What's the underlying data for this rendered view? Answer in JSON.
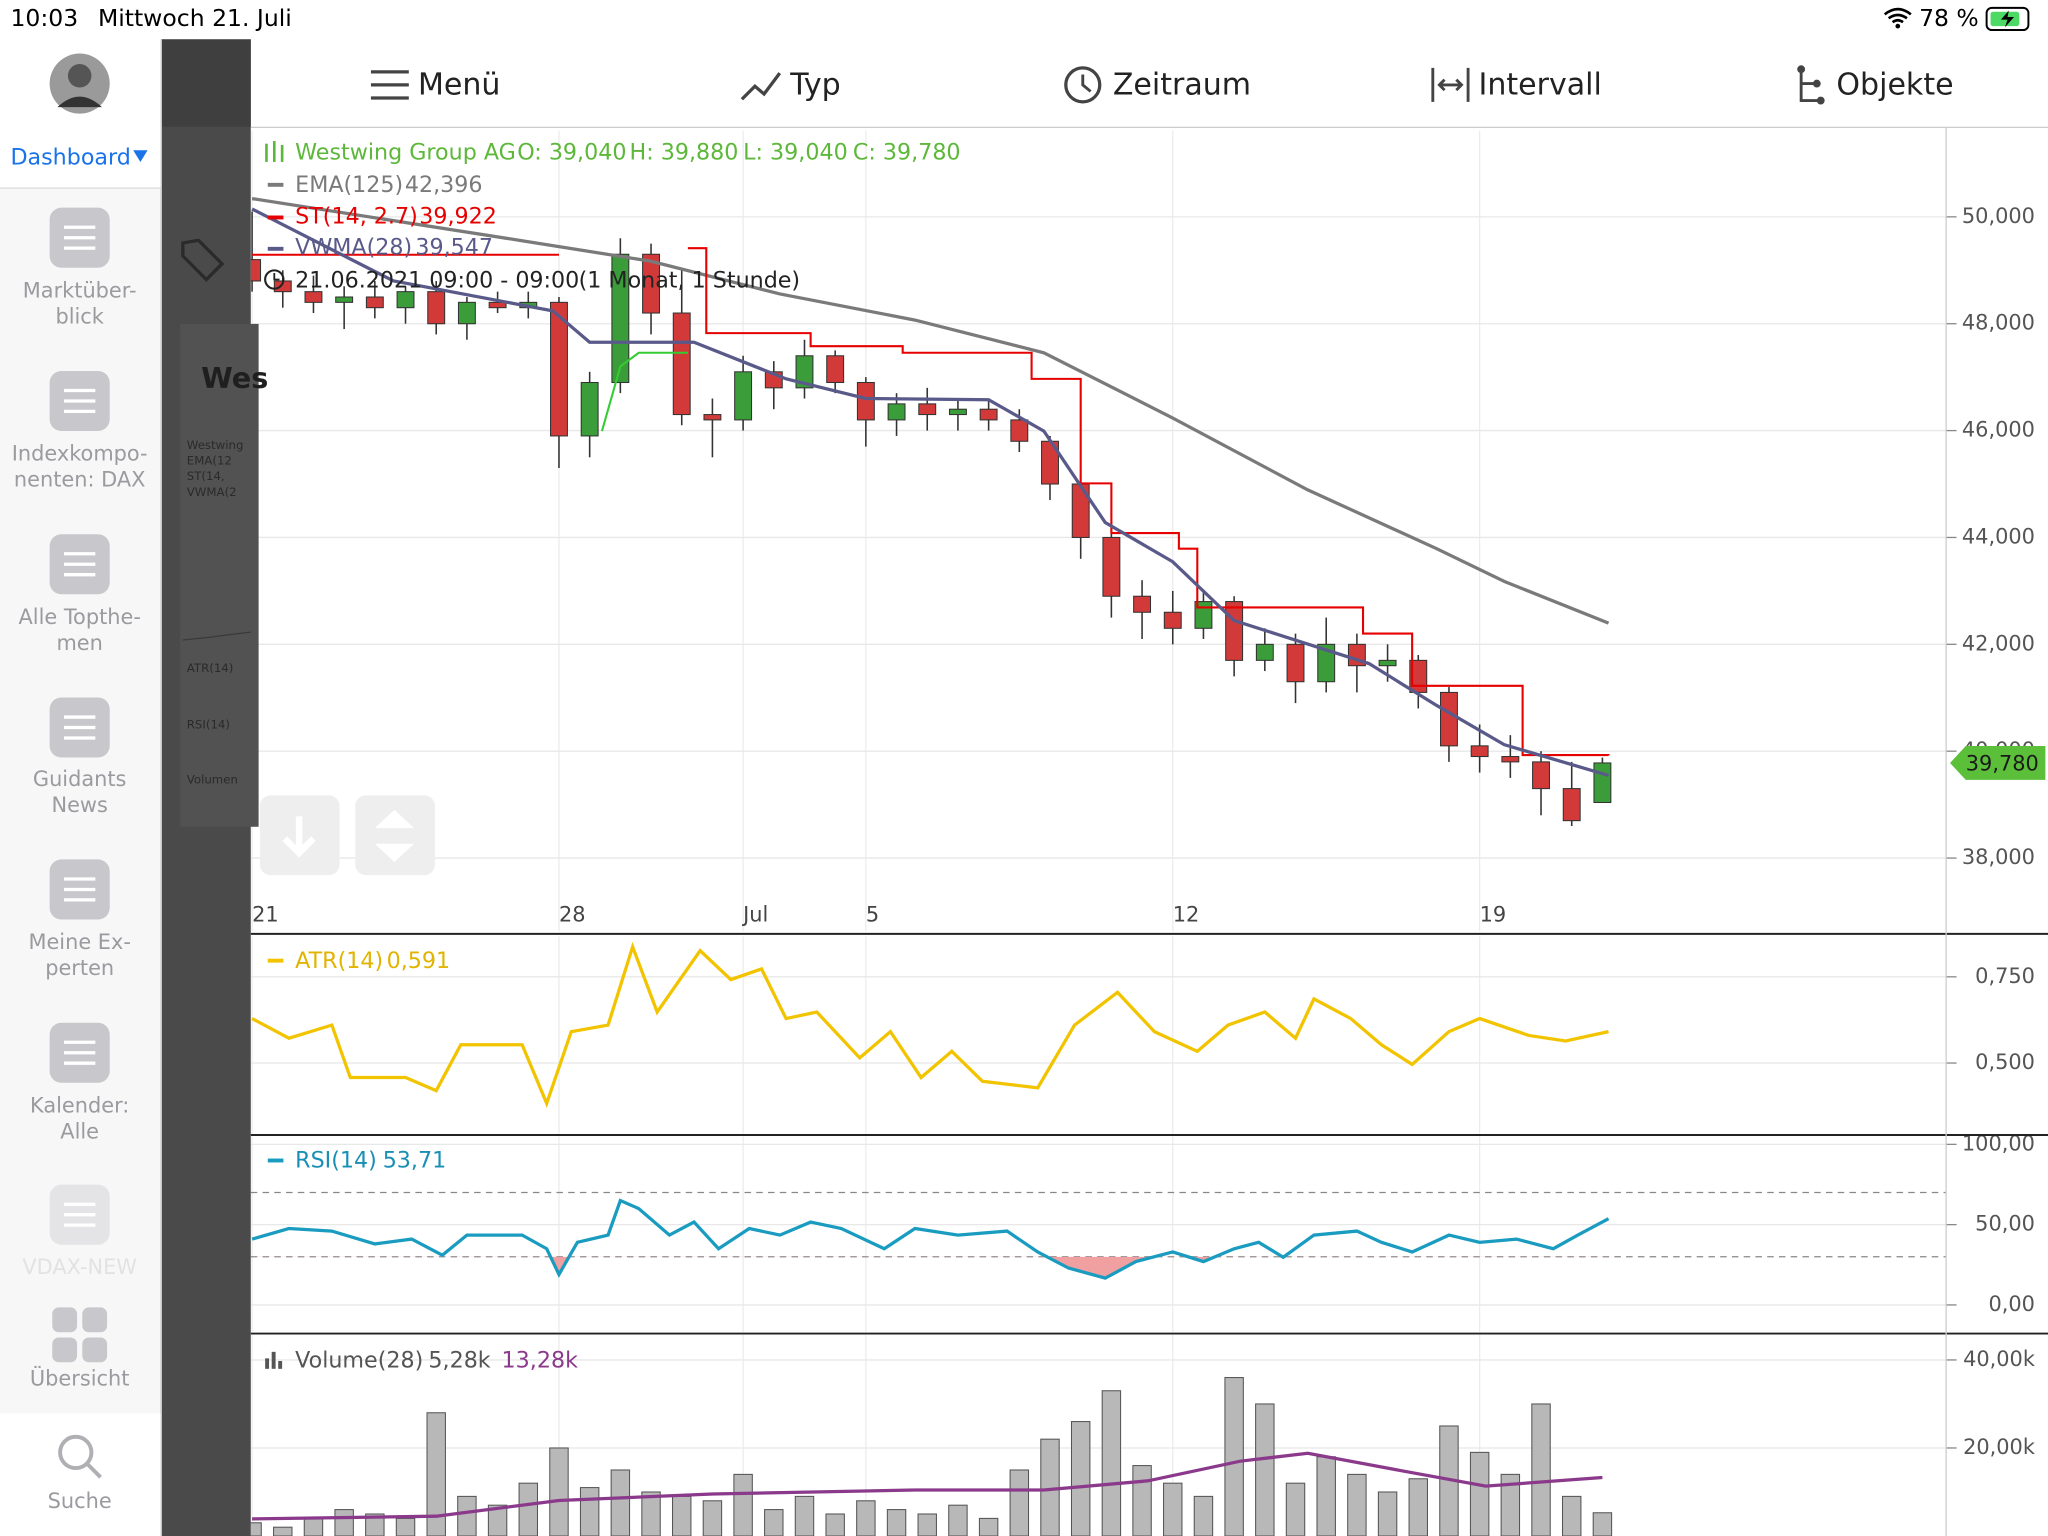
{
  "status_bar": {
    "time": "10:03",
    "date": "Mittwoch 21. Juli",
    "battery": "78 %"
  },
  "sidebar": {
    "dashboard": "Dashboard",
    "items": [
      {
        "lines": [
          "Marktüber-",
          "blick"
        ]
      },
      {
        "lines": [
          "Indexkompo-",
          "nenten: DAX"
        ]
      },
      {
        "lines": [
          "Alle Topthe-",
          "men"
        ]
      },
      {
        "lines": [
          "Guidants",
          "News"
        ]
      },
      {
        "lines": [
          "Meine Ex-",
          "perten"
        ]
      },
      {
        "lines": [
          "Kalender:",
          "Alle"
        ]
      },
      {
        "lines": [
          "VDAX-NEW"
        ]
      },
      {
        "lines": [
          "Übersicht"
        ]
      },
      {
        "lines": [
          "Suche"
        ]
      }
    ]
  },
  "background_panel": {
    "title": "Wes",
    "legend": [
      "Westwing",
      "EMA(12",
      "ST(14,",
      "VWMA(2",
      "ATR(14)",
      "RSI(14)",
      "Volumen"
    ]
  },
  "toolbar": [
    "Menü",
    "Typ",
    "Zeitraum",
    "Intervall",
    "Objekte"
  ],
  "chart_data": {
    "type": "candlestick",
    "instrument": "Westwing Group AG",
    "ohlc": [
      "O: 39,040",
      "H: 39,880",
      "L: 39,040",
      "C: 39,780"
    ],
    "period": "21.06.2021 09:00 - 09:00",
    "range": "(1 Monat, 1 Stunde)",
    "xlim": [
      0,
      27.6
    ],
    "xticks": [
      {
        "value": 0,
        "label": "21"
      },
      {
        "value": 5,
        "label": "28"
      },
      {
        "value": 8,
        "label": "Jul"
      },
      {
        "value": 10,
        "label": "5"
      },
      {
        "value": 15,
        "label": "12"
      },
      {
        "value": 20,
        "label": "19"
      }
    ],
    "ylim": [
      36630,
      51614
    ],
    "yticks": [
      {
        "value": 50000,
        "label": "50,000"
      },
      {
        "value": 48000,
        "label": "48,000"
      },
      {
        "value": 46000,
        "label": "46,000"
      },
      {
        "value": 44000,
        "label": "44,000"
      },
      {
        "value": 42000,
        "label": "42,000"
      },
      {
        "value": 40000,
        "label": "40,000"
      },
      {
        "value": 38000,
        "label": "38,000"
      }
    ],
    "grid": true,
    "price_tag": {
      "value": 39780,
      "label": "39,780",
      "color": "#5cbf3a"
    },
    "up_color": "#3a9d3a",
    "down_color": "#d23a3a",
    "candles": {
      "x": [
        0,
        0.5,
        1,
        1.5,
        2,
        2.5,
        3,
        3.5,
        4,
        4.5,
        5,
        5.5,
        6,
        6.5,
        7,
        7.5,
        8,
        8.5,
        9,
        9.5,
        10,
        10.5,
        11,
        11.5,
        12,
        12.5,
        13,
        13.5,
        14,
        14.5,
        15,
        15.5,
        16,
        16.5,
        17,
        17.5,
        18,
        18.5,
        19,
        19.5,
        20,
        20.5,
        21,
        21.5,
        22
      ],
      "open": [
        49200,
        48800,
        48600,
        48400,
        48500,
        48300,
        48600,
        48000,
        48400,
        48300,
        48400,
        45900,
        46900,
        49300,
        48200,
        46300,
        46200,
        47100,
        46800,
        47400,
        46900,
        46200,
        46500,
        46300,
        46400,
        46200,
        45800,
        45000,
        44000,
        42900,
        42600,
        42300,
        42800,
        41700,
        42000,
        41300,
        42000,
        41600,
        41700,
        41100,
        40100,
        39900,
        39800,
        39300,
        39040
      ],
      "high": [
        50100,
        49000,
        48900,
        48700,
        48800,
        48700,
        48800,
        48500,
        48600,
        48600,
        48500,
        47100,
        49600,
        49500,
        49000,
        46600,
        47400,
        47300,
        47700,
        47500,
        47000,
        46700,
        46800,
        46600,
        46600,
        46400,
        45900,
        45200,
        44200,
        43200,
        43000,
        43000,
        42900,
        42300,
        42200,
        42500,
        42200,
        42000,
        41800,
        41200,
        40500,
        40300,
        40000,
        39800,
        39880
      ],
      "low": [
        48600,
        48300,
        48200,
        47900,
        48100,
        48000,
        47800,
        47700,
        48200,
        48100,
        45300,
        45500,
        46700,
        47800,
        46100,
        45500,
        46000,
        46400,
        46600,
        46700,
        45700,
        45900,
        46000,
        46000,
        46000,
        45600,
        44700,
        43600,
        42500,
        42100,
        42000,
        42100,
        41400,
        41500,
        40900,
        41100,
        41100,
        41300,
        40800,
        39800,
        39600,
        39500,
        38800,
        38600,
        39040
      ],
      "close": [
        48800,
        48600,
        48400,
        48500,
        48300,
        48600,
        48000,
        48400,
        48300,
        48400,
        45900,
        46900,
        49300,
        48200,
        46300,
        46200,
        47100,
        46800,
        47400,
        46900,
        46200,
        46500,
        46300,
        46400,
        46200,
        45800,
        45000,
        44000,
        42900,
        42600,
        42300,
        42800,
        41700,
        42000,
        41300,
        42000,
        41600,
        41700,
        41100,
        40100,
        39900,
        39800,
        39300,
        38700,
        39780
      ]
    },
    "ema": {
      "name": "EMA(125)",
      "value_label": "42,396",
      "color": "#7a7a7a",
      "x": [
        0,
        4.5,
        6.5,
        8.6,
        10.8,
        12.9,
        15,
        17.2,
        19.3,
        20.4,
        22.1
      ],
      "values": [
        50342,
        49535,
        49169,
        48557,
        48068,
        47457,
        46235,
        44890,
        43790,
        43178,
        42396
      ]
    },
    "st": {
      "name": "ST(14, 2.7)",
      "value_label": "39,922",
      "color": "#e60000",
      "x": [
        0,
        5,
        5.05,
        7.1,
        7.4,
        9.1,
        10.6,
        12.7,
        13.5,
        14,
        15.1,
        15.4,
        18.1,
        18.9,
        20.7,
        22.1
      ],
      "values": [
        49291,
        49291,
        null,
        49413,
        47824,
        47580,
        47457,
        46968,
        45012,
        44083,
        43790,
        42690,
        42201,
        41223,
        39927,
        39922
      ],
      "up": {
        "color": "#33cc33",
        "x": [
          5.7,
          6,
          6.3,
          7.1
        ],
        "values": [
          45990,
          47200,
          47457,
          47457
        ]
      }
    },
    "vwma": {
      "name": "VWMA(28)",
      "value_label": "39,547",
      "color": "#5a5a8a",
      "x": [
        0,
        2.3,
        4.9,
        5.5,
        7.2,
        8.7,
        10,
        12,
        12.9,
        13.9,
        15,
        16,
        17.2,
        18.2,
        19.3,
        20.4,
        22.1
      ],
      "values": [
        50147,
        48802,
        48240,
        47653,
        47653,
        46968,
        46601,
        46577,
        45990,
        44279,
        43545,
        42445,
        42005,
        41638,
        40856,
        40122,
        39547
      ]
    },
    "atr": {
      "name": "ATR(14)",
      "value_label": "0,591",
      "color": "#f2c400",
      "ylim": [
        0.295,
        0.867
      ],
      "yticks": [
        {
          "value": 0.75,
          "label": "0,750"
        },
        {
          "value": 0.5,
          "label": "0,500"
        }
      ],
      "x": [
        0,
        0.6,
        1.3,
        1.6,
        2.5,
        3,
        3.4,
        4.4,
        4.8,
        5.2,
        5.8,
        6.2,
        6.6,
        7.3,
        7.8,
        8.3,
        8.7,
        9.2,
        9.9,
        10.4,
        10.9,
        11.4,
        11.9,
        12.8,
        13.4,
        14.1,
        14.7,
        15.4,
        15.9,
        16.5,
        17,
        17.3,
        17.9,
        18.4,
        18.9,
        19.5,
        20,
        20.8,
        21.4,
        22.1
      ],
      "values": [
        0.629,
        0.572,
        0.61,
        0.458,
        0.458,
        0.42,
        0.553,
        0.553,
        0.383,
        0.591,
        0.61,
        0.837,
        0.648,
        0.826,
        0.742,
        0.773,
        0.629,
        0.648,
        0.515,
        0.591,
        0.458,
        0.534,
        0.447,
        0.428,
        0.61,
        0.705,
        0.591,
        0.534,
        0.61,
        0.648,
        0.572,
        0.686,
        0.629,
        0.553,
        0.496,
        0.591,
        0.629,
        0.58,
        0.564,
        0.591
      ]
    },
    "rsi": {
      "name": "RSI(14)",
      "value_label": "53,71",
      "color": "#1a9bc0",
      "fill_color": "#f0a0a0",
      "ylim": [
        -17,
        105
      ],
      "yticks": [
        {
          "value": 100,
          "label": "100,00"
        },
        {
          "value": 50,
          "label": "50,00"
        },
        {
          "value": 0,
          "label": "0,00"
        }
      ],
      "levels": [
        70,
        30
      ],
      "x": [
        0,
        0.6,
        1.3,
        2,
        2.6,
        3.1,
        3.5,
        4.4,
        4.8,
        5,
        5.3,
        5.8,
        6,
        6.3,
        6.8,
        7.2,
        7.6,
        8.1,
        8.6,
        9.1,
        9.6,
        10.3,
        10.8,
        11.5,
        12.3,
        12.8,
        13.3,
        13.9,
        14.4,
        15,
        15.5,
        16,
        16.4,
        16.8,
        17.3,
        18,
        18.4,
        18.9,
        19.5,
        20,
        20.6,
        21.2,
        21.6,
        22.1
      ],
      "values": [
        41,
        47.6,
        46,
        38,
        41,
        31,
        43.5,
        43.5,
        35,
        19,
        39,
        43.5,
        65,
        60,
        43.5,
        51.6,
        35,
        47.6,
        43.5,
        51.6,
        47.6,
        35,
        47.6,
        43.5,
        46,
        33,
        23,
        16.7,
        27,
        33,
        27,
        35,
        39,
        29.7,
        43.5,
        46,
        39,
        33,
        43.5,
        39,
        41,
        35,
        43.5,
        53.71
      ]
    },
    "volume": {
      "name": "Volume(28)",
      "value_label": "5,28k",
      "ma_label": "13,28k",
      "color": "#b8b8b8",
      "ma_color": "#8b3a8b",
      "ylim": [
        0,
        45700
      ],
      "yticks": [
        {
          "value": 40000,
          "label": "40,00k"
        },
        {
          "value": 20000,
          "label": "20,00k"
        }
      ],
      "values": [
        3000,
        2000,
        4000,
        6000,
        5000,
        4000,
        28000,
        9000,
        7000,
        12000,
        20000,
        11000,
        15000,
        10000,
        9000,
        8000,
        14000,
        6000,
        9000,
        5000,
        8000,
        6000,
        5000,
        7000,
        4000,
        15000,
        22000,
        26000,
        33000,
        16000,
        12000,
        9000,
        36000,
        30000,
        12000,
        18000,
        14000,
        10000,
        13000,
        25000,
        19000,
        14000,
        30000,
        9000,
        5280
      ],
      "ma_x": [
        0,
        3,
        5,
        7.5,
        10.8,
        12.9,
        14.6,
        16.1,
        17.2,
        18.7,
        20.1,
        22
      ],
      "ma_values": [
        3880,
        4500,
        8060,
        9550,
        10450,
        10450,
        12540,
        17000,
        18800,
        14900,
        11340,
        13280
      ]
    }
  }
}
